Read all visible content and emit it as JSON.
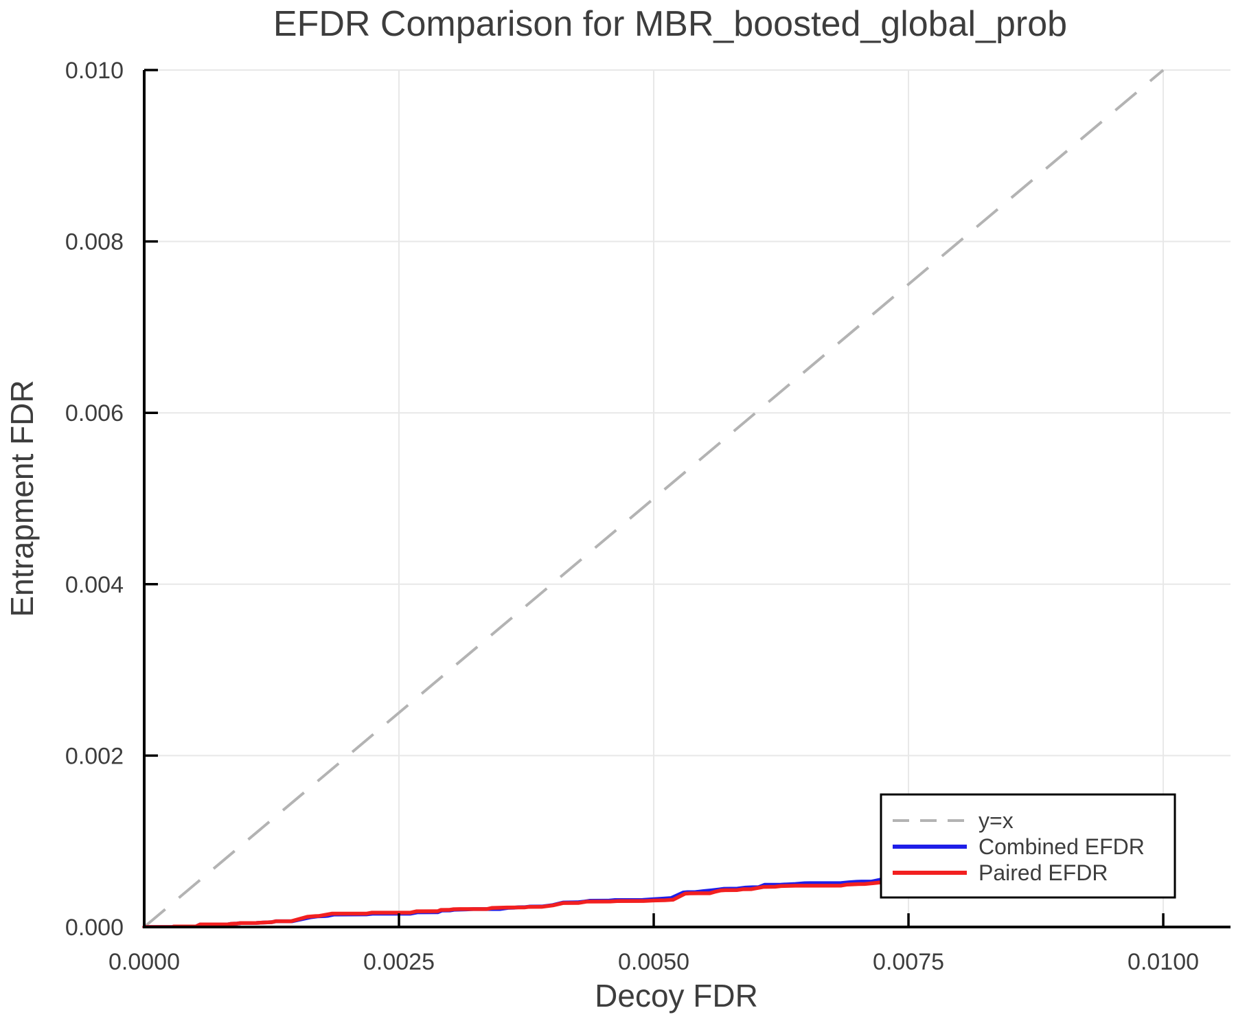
{
  "page": {
    "background": "#ffffff"
  },
  "chart_data": {
    "type": "line",
    "title": "EFDR Comparison for MBR_boosted_global_prob",
    "xlabel": "Decoy FDR",
    "ylabel": "Entrapment FDR",
    "xlim": [
      0,
      0.01066
    ],
    "ylim": [
      0,
      0.01
    ],
    "grid": true,
    "legend_position": "lower right",
    "x_ticks": {
      "values": [
        0,
        0.0025,
        0.005,
        0.0075,
        0.01
      ],
      "labels": [
        "0.0000",
        "0.0025",
        "0.0050",
        "0.0075",
        "0.0100"
      ]
    },
    "y_ticks": {
      "values": [
        0,
        0.002,
        0.004,
        0.006,
        0.008,
        0.01
      ],
      "labels": [
        "0.000",
        "0.002",
        "0.004",
        "0.006",
        "0.008",
        "0.010"
      ]
    },
    "colors": {
      "grid": "#e8e8e8",
      "spine": "#000000",
      "text": "#3d3d3d",
      "identity": "#b3b3b3",
      "combined": "#1e1ee8",
      "paired": "#f22020"
    },
    "value_scale": 0.0001,
    "series": [
      {
        "name": "y=x",
        "style": "dashed",
        "color": "#b3b3b3",
        "points": [
          [
            0,
            0
          ],
          [
            100,
            100
          ]
        ]
      },
      {
        "name": "Combined EFDR",
        "style": "solid",
        "color": "#1e1ee8",
        "points": [
          [
            0,
            0
          ],
          [
            2.8,
            0
          ],
          [
            2.9,
            0.06
          ],
          [
            5.1,
            0.07
          ],
          [
            5.5,
            0.3
          ],
          [
            8.2,
            0.3
          ],
          [
            8.6,
            0.38
          ],
          [
            9.1,
            0.4
          ],
          [
            9.5,
            0.46
          ],
          [
            11,
            0.47
          ],
          [
            11.4,
            0.5
          ],
          [
            12.5,
            0.56
          ],
          [
            12.9,
            0.67
          ],
          [
            14.5,
            0.67
          ],
          [
            16.3,
            1.13
          ],
          [
            17,
            1.24
          ],
          [
            17.7,
            1.27
          ],
          [
            18,
            1.3
          ],
          [
            18.6,
            1.45
          ],
          [
            21.8,
            1.47
          ],
          [
            22.4,
            1.55
          ],
          [
            26.1,
            1.55
          ],
          [
            26.8,
            1.71
          ],
          [
            28.8,
            1.72
          ],
          [
            29.2,
            1.92
          ],
          [
            30,
            1.93
          ],
          [
            30.4,
            2.01
          ],
          [
            31.6,
            2.05
          ],
          [
            32.3,
            2.09
          ],
          [
            34.9,
            2.09
          ],
          [
            35.7,
            2.23
          ],
          [
            36.3,
            2.25
          ],
          [
            36.7,
            2.3
          ],
          [
            37.3,
            2.31
          ],
          [
            37.8,
            2.38
          ],
          [
            39,
            2.39
          ],
          [
            40.1,
            2.56
          ],
          [
            41.1,
            2.85
          ],
          [
            42.5,
            2.88
          ],
          [
            43.2,
            2.97
          ],
          [
            43.7,
            3.06
          ],
          [
            45.5,
            3.07
          ],
          [
            46.2,
            3.15
          ],
          [
            48.9,
            3.16
          ],
          [
            50,
            3.25
          ],
          [
            50.7,
            3.3
          ],
          [
            51.7,
            3.38
          ],
          [
            52.9,
            4.03
          ],
          [
            53.3,
            4.07
          ],
          [
            54.1,
            4.08
          ],
          [
            54.9,
            4.19
          ],
          [
            55.6,
            4.27
          ],
          [
            56.4,
            4.38
          ],
          [
            56.9,
            4.46
          ],
          [
            58.2,
            4.48
          ],
          [
            59,
            4.6
          ],
          [
            59.7,
            4.64
          ],
          [
            60.3,
            4.65
          ],
          [
            60.9,
            4.93
          ],
          [
            62.5,
            4.94
          ],
          [
            63.9,
            5.02
          ],
          [
            64.8,
            5.11
          ],
          [
            65.3,
            5.12
          ],
          [
            68.4,
            5.13
          ],
          [
            69.2,
            5.22
          ],
          [
            69.9,
            5.28
          ],
          [
            70.4,
            5.3
          ],
          [
            71.4,
            5.31
          ],
          [
            72.9,
            5.68
          ],
          [
            74.7,
            5.69
          ],
          [
            75.4,
            5.78
          ],
          [
            75.8,
            5.8
          ],
          [
            76.6,
            6.15
          ],
          [
            77.3,
            6.21
          ],
          [
            78.3,
            6.26
          ],
          [
            79,
            6.35
          ],
          [
            80.6,
            6.36
          ],
          [
            81,
            6.4
          ],
          [
            82.5,
            7.02
          ],
          [
            82.9,
            7.06
          ],
          [
            84.1,
            7.18
          ],
          [
            85.4,
            7.2
          ],
          [
            85.8,
            7.36
          ],
          [
            87,
            7.37
          ],
          [
            87.9,
            7.5
          ],
          [
            89.3,
            7.65
          ],
          [
            90.7,
            7.74
          ],
          [
            91.2,
            7.84
          ],
          [
            92.7,
            7.85
          ],
          [
            93.1,
            7.93
          ],
          [
            94,
            8.08
          ],
          [
            95.9,
            8.16
          ],
          [
            96.5,
            8.18
          ],
          [
            97.7,
            8.4
          ],
          [
            99.1,
            8.49
          ],
          [
            100,
            8.56
          ]
        ]
      },
      {
        "name": "Paired EFDR",
        "style": "solid",
        "color": "#f22020",
        "points": [
          [
            0,
            0
          ],
          [
            2.8,
            0
          ],
          [
            2.9,
            0.06
          ],
          [
            5.1,
            0.07
          ],
          [
            5.5,
            0.3
          ],
          [
            8.2,
            0.3
          ],
          [
            8.6,
            0.38
          ],
          [
            9.1,
            0.4
          ],
          [
            9.5,
            0.46
          ],
          [
            11,
            0.47
          ],
          [
            11.4,
            0.5
          ],
          [
            12.5,
            0.56
          ],
          [
            12.9,
            0.67
          ],
          [
            14.4,
            0.67
          ],
          [
            16,
            1.19
          ],
          [
            16.8,
            1.27
          ],
          [
            17.1,
            1.28
          ],
          [
            18.4,
            1.56
          ],
          [
            21.8,
            1.56
          ],
          [
            22.3,
            1.67
          ],
          [
            26.1,
            1.67
          ],
          [
            26.7,
            1.83
          ],
          [
            28.8,
            1.84
          ],
          [
            29.1,
            1.99
          ],
          [
            29.9,
            2
          ],
          [
            30.3,
            2.07
          ],
          [
            31,
            2.09
          ],
          [
            33.6,
            2.09
          ],
          [
            34.1,
            2.22
          ],
          [
            35.6,
            2.27
          ],
          [
            37.3,
            2.28
          ],
          [
            37.7,
            2.34
          ],
          [
            39,
            2.35
          ],
          [
            40.1,
            2.52
          ],
          [
            41.1,
            2.79
          ],
          [
            42.6,
            2.8
          ],
          [
            43.4,
            2.96
          ],
          [
            45.7,
            2.97
          ],
          [
            46.4,
            3.02
          ],
          [
            49,
            3.03
          ],
          [
            50,
            3.09
          ],
          [
            51.1,
            3.12
          ],
          [
            51.9,
            3.18
          ],
          [
            53.1,
            3.9
          ],
          [
            53.6,
            3.93
          ],
          [
            55.5,
            3.94
          ],
          [
            56,
            4.11
          ],
          [
            56.6,
            4.27
          ],
          [
            57,
            4.3
          ],
          [
            58.2,
            4.31
          ],
          [
            58.8,
            4.41
          ],
          [
            59.6,
            4.42
          ],
          [
            60.8,
            4.68
          ],
          [
            61.9,
            4.7
          ],
          [
            62.5,
            4.78
          ],
          [
            63.2,
            4.8
          ],
          [
            63.9,
            4.82
          ],
          [
            68.4,
            4.83
          ],
          [
            69,
            4.95
          ],
          [
            70.1,
            5.01
          ],
          [
            70.7,
            5.02
          ],
          [
            71.5,
            5.11
          ],
          [
            72.9,
            5.29
          ],
          [
            74.7,
            5.3
          ],
          [
            75.2,
            5.4
          ],
          [
            76.2,
            5.5
          ],
          [
            77,
            5.54
          ],
          [
            77.4,
            5.76
          ],
          [
            78.7,
            5.82
          ],
          [
            79.3,
            5.85
          ],
          [
            80.8,
            5.9
          ],
          [
            81.2,
            5.95
          ],
          [
            82.5,
            6.52
          ],
          [
            83.3,
            6.58
          ],
          [
            84,
            6.7
          ],
          [
            85.2,
            6.72
          ],
          [
            85.7,
            6.83
          ],
          [
            87.4,
            6.85
          ],
          [
            87.8,
            6.91
          ],
          [
            89.1,
            7.03
          ],
          [
            90.5,
            7.11
          ],
          [
            92.3,
            7.13
          ],
          [
            93.6,
            7.31
          ],
          [
            95,
            7.33
          ],
          [
            96,
            7.42
          ],
          [
            97.1,
            7.5
          ],
          [
            97.8,
            7.64
          ],
          [
            99.5,
            7.68
          ],
          [
            100,
            7.78
          ]
        ]
      }
    ]
  }
}
